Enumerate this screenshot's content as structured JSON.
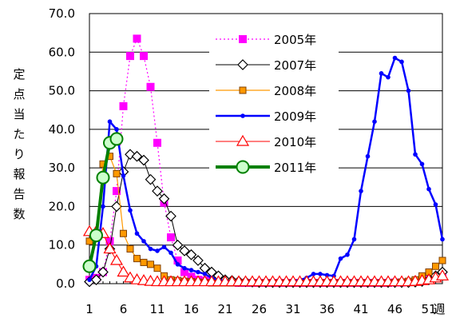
{
  "chart_data": {
    "type": "line",
    "title": "",
    "xlabel": "週",
    "ylabel": "定点当たり報告数",
    "ylim": [
      0,
      70
    ],
    "ytick_labels": [
      "0.0",
      "10.0",
      "20.0",
      "30.0",
      "40.0",
      "50.0",
      "60.0",
      "70.0"
    ],
    "yticks": [
      0,
      10,
      20,
      30,
      40,
      50,
      60,
      70
    ],
    "xlim": [
      1,
      53
    ],
    "xticks": [
      1,
      6,
      11,
      16,
      21,
      26,
      31,
      36,
      41,
      46,
      51
    ],
    "xtick_labels": [
      "1",
      "6",
      "11",
      "16",
      "21",
      "26",
      "31",
      "36",
      "41",
      "46",
      "51"
    ],
    "x_unit_label": "週",
    "grid": true,
    "legend_position": "top-center",
    "series": [
      {
        "name": "2005年",
        "color": "#ff00ff",
        "marker": "square-filled",
        "dash": "dotted",
        "width": 1.2,
        "x": [
          1,
          2,
          3,
          4,
          5,
          6,
          7,
          8,
          9,
          10,
          11,
          12,
          13,
          14,
          15,
          16,
          17,
          18,
          19,
          20,
          21,
          22,
          23,
          24,
          25,
          26,
          27,
          28,
          29,
          30,
          31,
          32,
          33,
          34,
          35,
          36,
          37,
          38,
          39,
          40,
          41,
          42,
          43,
          44,
          45,
          46,
          47,
          48,
          49,
          50,
          51,
          52,
          53
        ],
        "y": [
          1.0,
          1.5,
          3.0,
          11.0,
          24.0,
          46.0,
          59.0,
          63.5,
          59.0,
          51.0,
          36.5,
          21.0,
          12.0,
          6.0,
          3.0,
          1.8,
          1.0,
          0.8,
          0.6,
          0.5,
          0.4,
          0.3,
          0.2,
          0.2,
          0.2,
          0.2,
          0.2,
          0.2,
          0.2,
          0.2,
          0.2,
          0.2,
          0.2,
          0.2,
          0.2,
          0.2,
          0.2,
          0.2,
          0.2,
          0.2,
          0.2,
          0.2,
          0.2,
          0.2,
          0.2,
          0.3,
          0.3,
          0.4,
          0.5,
          0.7,
          1.0,
          1.5,
          2.0
        ]
      },
      {
        "name": "2007年",
        "color": "#000000",
        "marker": "diamond-open",
        "dash": "solid",
        "width": 1,
        "x": [
          1,
          2,
          3,
          4,
          5,
          6,
          7,
          8,
          9,
          10,
          11,
          12,
          13,
          14,
          15,
          16,
          17,
          18,
          19,
          20,
          21,
          22,
          23,
          24,
          25,
          26,
          27,
          28,
          29,
          30,
          31,
          32,
          33,
          34,
          35,
          36,
          37,
          38,
          39,
          40,
          41,
          42,
          43,
          44,
          45,
          46,
          47,
          48,
          49,
          50,
          51,
          52,
          53
        ],
        "y": [
          0.5,
          1.0,
          3.0,
          9.0,
          20.0,
          29.0,
          33.5,
          33.0,
          32.0,
          27.0,
          24.0,
          22.0,
          17.5,
          10.0,
          8.5,
          7.5,
          6.0,
          4.0,
          3.0,
          2.0,
          1.0,
          0.8,
          0.6,
          0.5,
          0.4,
          0.3,
          0.3,
          0.3,
          0.3,
          0.3,
          0.3,
          0.3,
          0.3,
          0.3,
          0.3,
          0.3,
          0.3,
          0.3,
          0.3,
          0.3,
          0.3,
          0.3,
          0.3,
          0.3,
          0.3,
          0.3,
          0.3,
          0.3,
          0.4,
          0.6,
          1.0,
          2.0,
          3.0
        ]
      },
      {
        "name": "2008年",
        "color": "#ff9900",
        "marker": "square-filled-dark-edge",
        "dash": "solid",
        "width": 1.2,
        "x": [
          1,
          2,
          3,
          4,
          5,
          6,
          7,
          8,
          9,
          10,
          11,
          12,
          13,
          14,
          15,
          16,
          17,
          18,
          19,
          20,
          21,
          22,
          23,
          24,
          25,
          26,
          27,
          28,
          29,
          30,
          31,
          32,
          33,
          34,
          35,
          36,
          37,
          38,
          39,
          40,
          41,
          42,
          43,
          44,
          45,
          46,
          47,
          48,
          49,
          50,
          51,
          52,
          53
        ],
        "y": [
          11.0,
          13.0,
          31.0,
          33.0,
          28.5,
          13.0,
          9.0,
          6.5,
          5.5,
          5.0,
          4.0,
          2.0,
          1.0,
          0.8,
          0.6,
          0.5,
          0.4,
          0.3,
          0.2,
          0.2,
          0.2,
          0.2,
          0.2,
          0.2,
          0.2,
          0.2,
          0.2,
          0.2,
          0.2,
          0.2,
          0.2,
          0.2,
          0.2,
          0.2,
          0.2,
          0.2,
          0.2,
          0.2,
          0.2,
          0.2,
          0.2,
          0.2,
          0.2,
          0.2,
          0.2,
          0.3,
          0.4,
          0.6,
          1.0,
          2.0,
          3.0,
          4.5,
          6.0
        ]
      },
      {
        "name": "2009年",
        "color": "#0000ff",
        "marker": "dot",
        "dash": "solid",
        "width": 2.5,
        "x": [
          1,
          2,
          3,
          4,
          5,
          6,
          7,
          8,
          9,
          10,
          11,
          12,
          13,
          14,
          15,
          16,
          17,
          18,
          19,
          20,
          21,
          22,
          23,
          24,
          25,
          26,
          27,
          28,
          29,
          30,
          31,
          32,
          33,
          34,
          35,
          36,
          37,
          38,
          39,
          40,
          41,
          42,
          43,
          44,
          45,
          46,
          47,
          48,
          49,
          50,
          51,
          52,
          53
        ],
        "y": [
          1.0,
          4.5,
          20.0,
          42.0,
          40.0,
          28.0,
          19.0,
          13.0,
          11.0,
          9.0,
          8.5,
          9.5,
          8.0,
          5.0,
          4.0,
          3.5,
          3.0,
          2.5,
          1.5,
          1.0,
          0.8,
          0.6,
          0.5,
          0.5,
          0.5,
          0.5,
          0.5,
          0.5,
          0.5,
          0.5,
          0.6,
          1.0,
          1.5,
          2.5,
          2.5,
          2.2,
          2.0,
          6.5,
          7.5,
          11.5,
          24.0,
          33.0,
          42.0,
          54.5,
          53.5,
          58.5,
          57.5,
          50.0,
          33.5,
          31.0,
          24.5,
          20.5,
          11.5
        ]
      },
      {
        "name": "2010年",
        "color": "#ff0000",
        "marker": "triangle-open",
        "dash": "solid",
        "width": 1,
        "x": [
          1,
          2,
          3,
          4,
          5,
          6,
          7,
          8,
          9,
          10,
          11,
          12,
          13,
          14,
          15,
          16,
          17,
          18,
          19,
          20,
          21,
          22,
          23,
          24,
          25,
          26,
          27,
          28,
          29,
          30,
          31,
          32,
          33,
          34,
          35,
          36,
          37,
          38,
          39,
          40,
          41,
          42,
          43,
          44,
          45,
          46,
          47,
          48,
          49,
          50,
          51,
          52,
          53
        ],
        "y": [
          13.5,
          13.5,
          13.0,
          9.0,
          6.0,
          3.0,
          1.5,
          1.0,
          0.8,
          0.6,
          0.5,
          0.5,
          0.5,
          0.5,
          0.5,
          0.5,
          0.5,
          0.5,
          0.5,
          0.5,
          0.5,
          0.5,
          0.5,
          0.5,
          0.5,
          0.5,
          0.5,
          0.5,
          0.5,
          0.5,
          0.5,
          0.5,
          0.5,
          0.5,
          0.5,
          0.5,
          0.5,
          0.5,
          0.5,
          0.5,
          0.5,
          0.5,
          0.5,
          0.5,
          0.5,
          0.5,
          0.5,
          0.5,
          0.6,
          0.8,
          1.0,
          1.5,
          2.0
        ]
      },
      {
        "name": "2011年",
        "color": "#008000",
        "marker": "circle-open-large",
        "dash": "solid",
        "width": 4,
        "x": [
          1,
          2,
          3,
          4,
          5
        ],
        "y": [
          4.5,
          12.5,
          27.5,
          36.5,
          37.5
        ]
      }
    ]
  },
  "legend_colors": {
    "circle_fill": "#ccffcc",
    "square_2008_edge": "#804000"
  }
}
